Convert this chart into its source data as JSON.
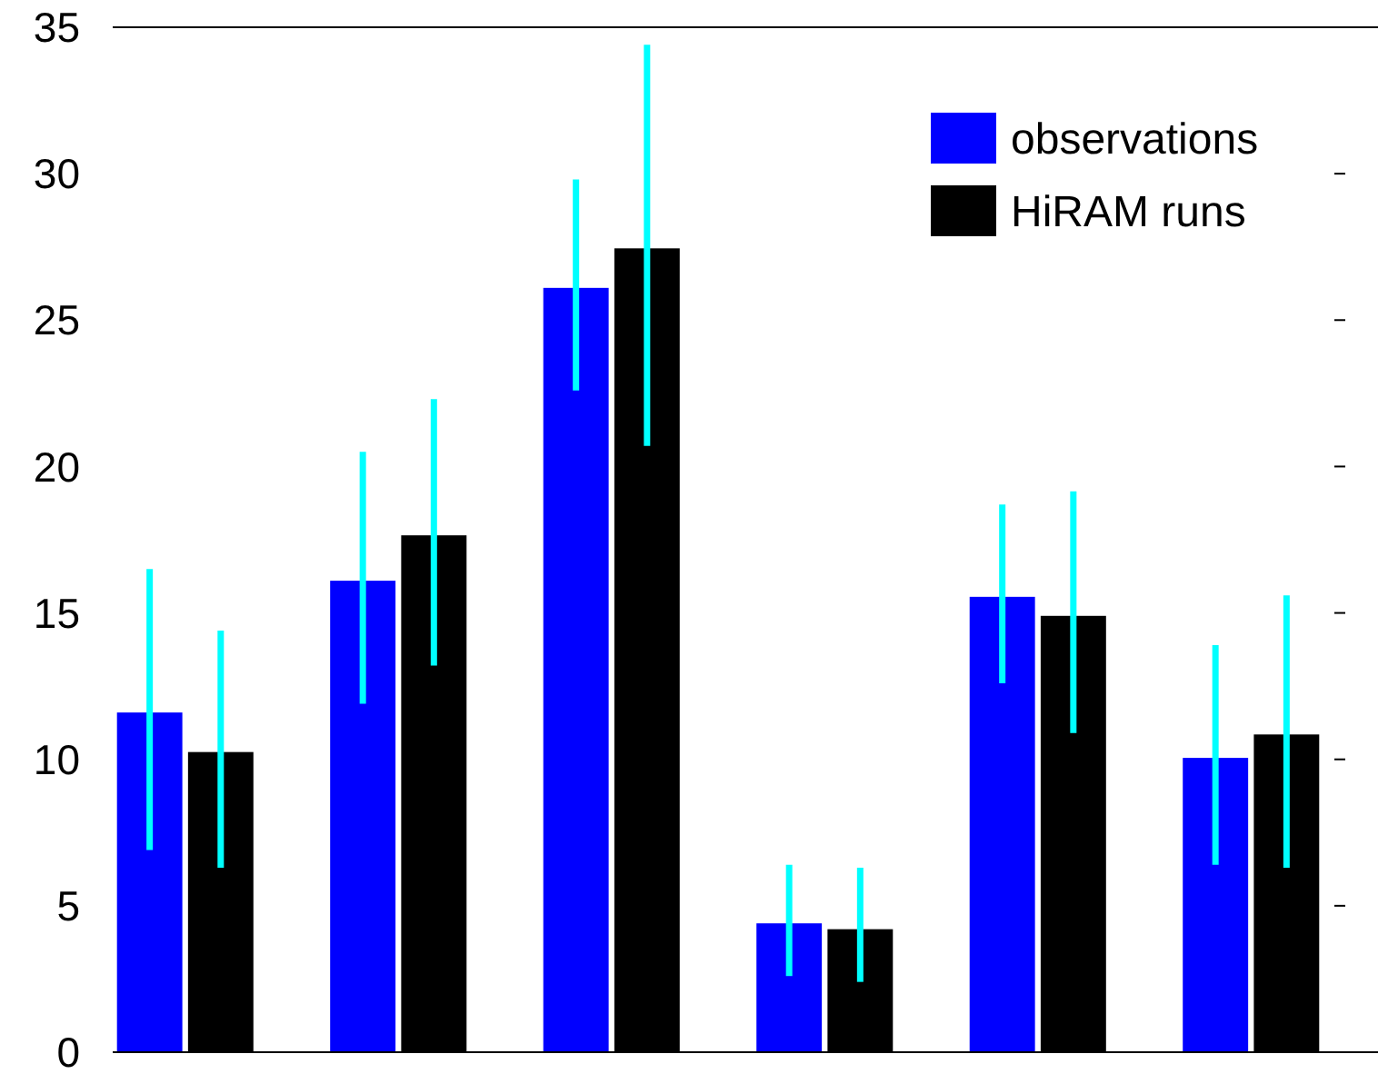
{
  "chart_data": {
    "type": "bar",
    "categories": [
      null,
      null,
      null,
      null,
      null,
      null
    ],
    "series": [
      {
        "name": "observations",
        "color": "#0000ff",
        "values": [
          11.6,
          16.1,
          26.1,
          4.4,
          15.55,
          10.05
        ],
        "errors": [
          [
            6.9,
            16.5
          ],
          [
            11.9,
            20.5
          ],
          [
            22.6,
            29.8
          ],
          [
            2.6,
            6.4
          ],
          [
            12.6,
            18.7
          ],
          [
            6.4,
            13.9
          ]
        ]
      },
      {
        "name": "HiRAM runs",
        "color": "#000000",
        "values": [
          10.25,
          17.65,
          27.45,
          4.2,
          14.9,
          10.85
        ],
        "errors": [
          [
            6.3,
            14.4
          ],
          [
            13.2,
            22.3
          ],
          [
            20.7,
            34.4
          ],
          [
            2.4,
            6.3
          ],
          [
            10.9,
            19.15
          ],
          [
            6.3,
            15.6
          ]
        ]
      }
    ],
    "ylim": [
      0,
      35
    ],
    "yticks": [
      0,
      5,
      10,
      15,
      20,
      25,
      30,
      35
    ],
    "grid": false,
    "legend": "top right"
  }
}
